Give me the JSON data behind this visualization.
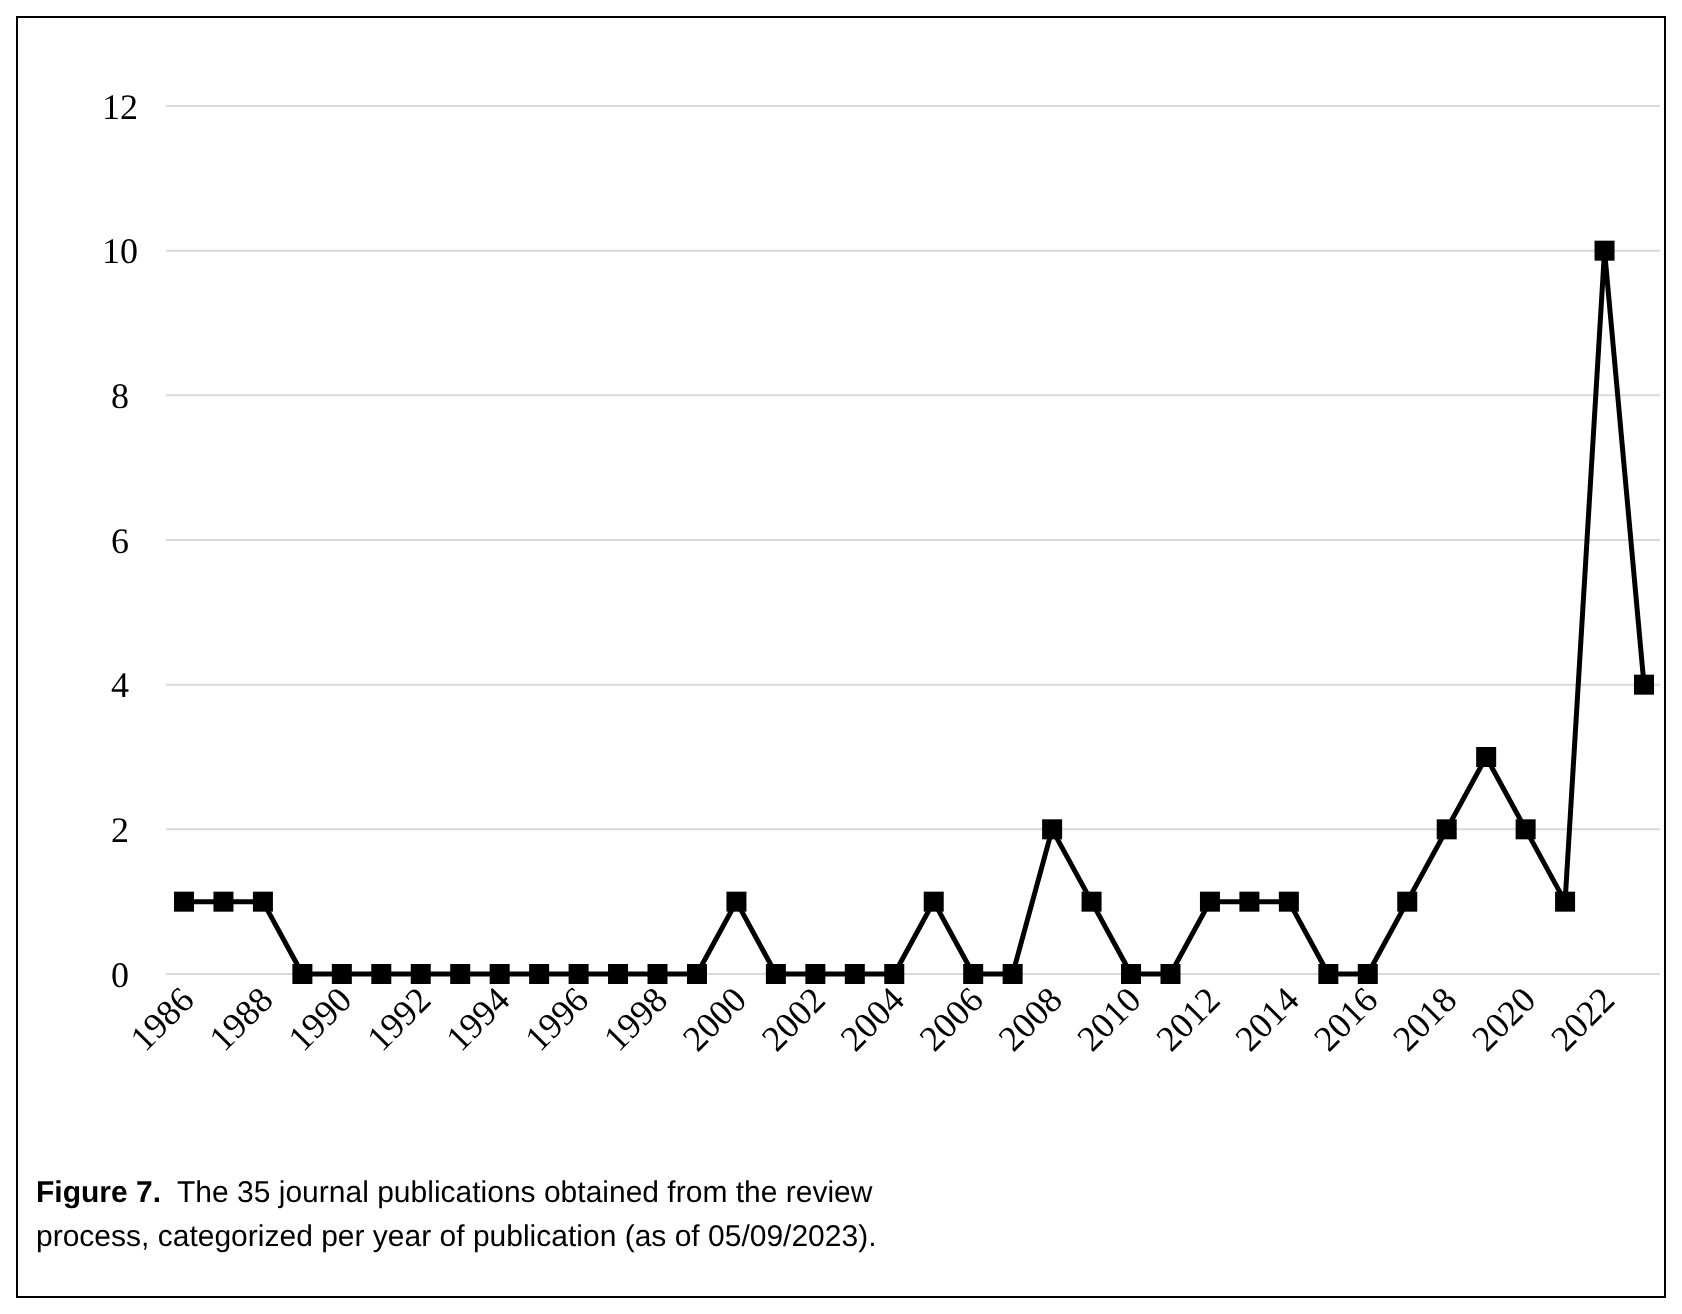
{
  "chart_data": {
    "type": "line",
    "categories": [
      "1986",
      null,
      "1988",
      null,
      "1990",
      null,
      "1992",
      null,
      "1994",
      null,
      "1996",
      null,
      "1998",
      null,
      "2000",
      null,
      "2002",
      null,
      "2004",
      null,
      "2006",
      null,
      "2008",
      null,
      "2010",
      null,
      "2012",
      null,
      "2014",
      null,
      "2016",
      null,
      "2018",
      null,
      "2020",
      null,
      "2022",
      null
    ],
    "series": [
      {
        "color": "#000000",
        "values": [
          1,
          1,
          1,
          0,
          0,
          0,
          0,
          0,
          0,
          0,
          0,
          0,
          0,
          0,
          1,
          0,
          0,
          0,
          0,
          1,
          0,
          0,
          2,
          1,
          0,
          0,
          1,
          1,
          1,
          0,
          0,
          1,
          2,
          3,
          2,
          1,
          10,
          4
        ]
      }
    ],
    "ylim": [
      0,
      12
    ],
    "yticks": [
      0,
      2,
      4,
      6,
      8,
      10,
      12
    ],
    "grid": "y",
    "marker": "square",
    "line_style": "solid",
    "annotations": [
      "Figure 7.",
      "The 35 journal publications obtained from the review process, categorized per year of publication (as of 05/09/2023)."
    ]
  }
}
